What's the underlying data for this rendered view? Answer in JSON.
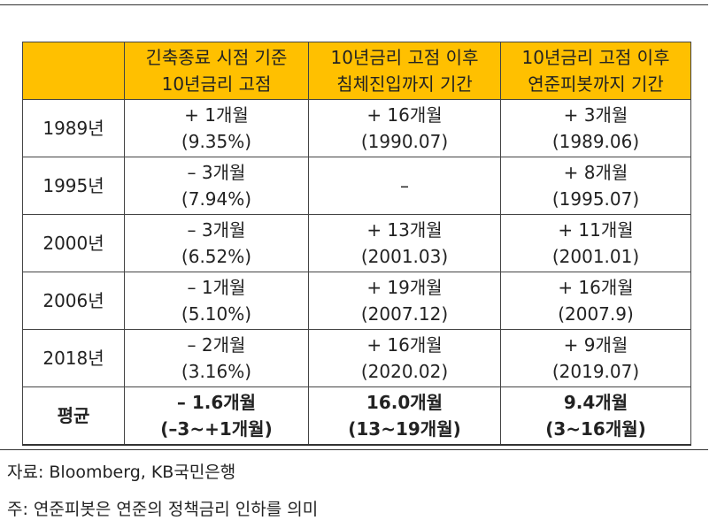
{
  "table": {
    "columns": [
      [
        "긴축종료 시점 기준",
        "10년금리 고점"
      ],
      [
        "10년금리 고점 이후",
        "침체진입까지 기간"
      ],
      [
        "10년금리 고점 이후",
        "연준피봇까지 기간"
      ]
    ],
    "rows": [
      {
        "label": "1989년",
        "cells": [
          [
            "+ 1개월",
            "(9.35%)"
          ],
          [
            "+ 16개월",
            "(1990.07)"
          ],
          [
            "+ 3개월",
            "(1989.06)"
          ]
        ]
      },
      {
        "label": "1995년",
        "cells": [
          [
            "– 3개월",
            "(7.94%)"
          ],
          [
            "–"
          ],
          [
            "+ 8개월",
            "(1995.07)"
          ]
        ]
      },
      {
        "label": "2000년",
        "cells": [
          [
            "– 3개월",
            "(6.52%)"
          ],
          [
            "+ 13개월",
            "(2001.03)"
          ],
          [
            "+ 11개월",
            "(2001.01)"
          ]
        ]
      },
      {
        "label": "2006년",
        "cells": [
          [
            "– 1개월",
            "(5.10%)"
          ],
          [
            "+ 19개월",
            "(2007.12)"
          ],
          [
            "+ 16개월",
            "(2007.9)"
          ]
        ]
      },
      {
        "label": "2018년",
        "cells": [
          [
            "– 2개월",
            "(3.16%)"
          ],
          [
            "+ 16개월",
            "(2020.02)"
          ],
          [
            "+ 9개월",
            "(2019.07)"
          ]
        ]
      },
      {
        "label": "평균",
        "cells": [
          [
            "– 1.6개월",
            "(–3~+1개월)"
          ],
          [
            "16.0개월",
            "(13~19개월)"
          ],
          [
            "9.4개월",
            "(3~16개월)"
          ]
        ]
      }
    ]
  },
  "notes": [
    "자료: Bloomberg, KB국민은행",
    "주: 연준피봇은 연준의 정책금리 인하를 의미"
  ]
}
